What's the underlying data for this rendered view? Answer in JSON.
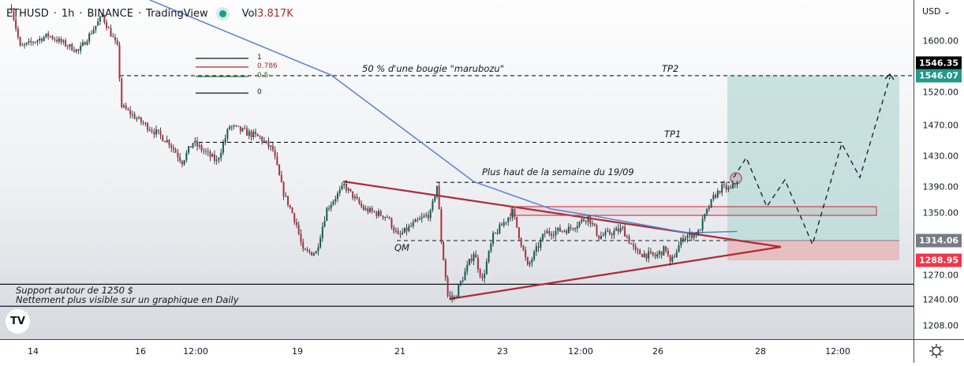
{
  "header": {
    "symbol": "ETHUSD",
    "interval": "1h",
    "exchange": "BINANCE",
    "source": "TradingView",
    "separator": "·",
    "vol_label": "Vol",
    "vol_value": "3.817K"
  },
  "price_axis": {
    "currency": "USD ⌄",
    "ticks": [
      "1600.00",
      "1520.00",
      "1470.00",
      "1430.00",
      "1390.00",
      "1350.00",
      "1270.00",
      "1240.00",
      "1208.00"
    ],
    "badges": [
      {
        "label": "1546.35",
        "color": "#000000"
      },
      {
        "label": "1546.07",
        "color": "#22998a"
      },
      {
        "label": "1314.06",
        "color": "#787b86"
      },
      {
        "label": "1288.95",
        "color": "#f23645"
      }
    ]
  },
  "time_axis": {
    "ticks": [
      "14",
      "16",
      "12:00",
      "19",
      "21",
      "23",
      "12:00",
      "26",
      "28",
      "12:00"
    ]
  },
  "annotations": {
    "marubozu": "50 % d'une bougie \"marubozu\"",
    "tp2": "TP2",
    "tp1": "TP1",
    "weekly_high": "Plus haut de la semaine du 19/09",
    "qm": "QM",
    "support_line1": "Support autour de 1250 $",
    "support_line2": "Nettement plus visible sur un graphique en Daily",
    "fib": [
      "1",
      "0.786",
      "0.5",
      "0"
    ]
  },
  "logo": "TV",
  "settings_icon": "gear-icon",
  "chart_data": {
    "type": "candlestick",
    "symbol": "ETHUSD",
    "interval": "1h",
    "colors": {
      "up": "#0f5e50",
      "down": "#b0303a",
      "ma": "#5b7fd6",
      "target_zone": "#b5d9d6",
      "stop_zone": "#e8b5b5"
    },
    "price_path": [
      [
        "13 14:00",
        1652
      ],
      [
        "13 18:00",
        1590
      ],
      [
        "14 07:00",
        1609
      ],
      [
        "14 21:00",
        1584
      ],
      [
        "15 08:00",
        1639
      ],
      [
        "15 15:00",
        1590
      ],
      [
        "15 17:00",
        1499
      ],
      [
        "16 02:00",
        1475
      ],
      [
        "16 15:00",
        1448
      ],
      [
        "16 21:00",
        1423
      ],
      [
        "17 02:00",
        1448
      ],
      [
        "17 13:00",
        1423
      ],
      [
        "17 19:00",
        1469
      ],
      [
        "18 09:00",
        1454
      ],
      [
        "18 15:00",
        1438
      ],
      [
        "18 20:00",
        1380
      ],
      [
        "19 02:00",
        1335
      ],
      [
        "19 05:00",
        1299
      ],
      [
        "19 11:00",
        1299
      ],
      [
        "19 16:00",
        1356
      ],
      [
        "20 00:00",
        1392
      ],
      [
        "20 09:00",
        1356
      ],
      [
        "20 20:00",
        1345
      ],
      [
        "21 01:00",
        1319
      ],
      [
        "21 08:00",
        1335
      ],
      [
        "21 16:00",
        1350
      ],
      [
        "21 19:00",
        1392
      ],
      [
        "21 21:00",
        1314
      ],
      [
        "22 00:00",
        1245
      ],
      [
        "22 03:00",
        1242
      ],
      [
        "22 12:00",
        1299
      ],
      [
        "22 16:00",
        1264
      ],
      [
        "22 21:00",
        1319
      ],
      [
        "23 06:00",
        1352
      ],
      [
        "23 13:00",
        1280
      ],
      [
        "23 21:00",
        1324
      ],
      [
        "24 08:00",
        1329
      ],
      [
        "24 17:00",
        1345
      ],
      [
        "24 22:00",
        1319
      ],
      [
        "25 09:00",
        1329
      ],
      [
        "25 15:00",
        1299
      ],
      [
        "26 00:00",
        1294
      ],
      [
        "26 05:00",
        1304
      ],
      [
        "26 07:00",
        1284
      ],
      [
        "26 13:00",
        1319
      ],
      [
        "26 20:00",
        1324
      ],
      [
        "27 03:00",
        1374
      ],
      [
        "27 07:00",
        1389
      ],
      [
        "27 11:00",
        1386
      ],
      [
        "27 14:00",
        1399
      ]
    ],
    "moving_average": [
      [
        "16 06:00",
        1664
      ],
      [
        "19 18:00",
        1547
      ],
      [
        "22 12:00",
        1397
      ],
      [
        "24 00:00",
        1356
      ],
      [
        "24 22:00",
        1345
      ],
      [
        "26 15:00",
        1324
      ],
      [
        "27 14:00",
        1326
      ]
    ],
    "levels": {
      "tp2": 1546.07,
      "tp1": 1448,
      "weekly_high": 1396,
      "qm": 1314,
      "support_high": 1259,
      "support_low": 1232
    },
    "position": {
      "entry": 1314.06,
      "stop": 1288.95,
      "target": 1546.07
    },
    "ylim": [
      1190,
      1660
    ]
  }
}
